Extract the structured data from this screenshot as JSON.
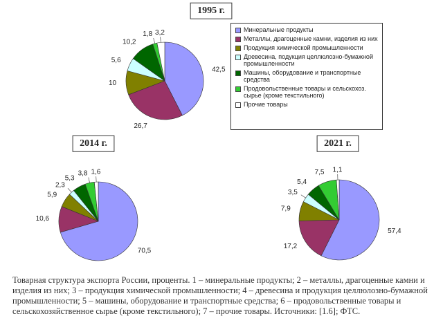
{
  "chart_data": [
    {
      "type": "pie",
      "title": "1995 г.",
      "categories": [
        "Минеральные продукты",
        "Металлы, драгоценные камни, изделия из них",
        "Продукция химической промышленности",
        "Древесина, подукция целлюлозно-бумажной промышленности",
        "Машины, оборудование и транспортные средства",
        "Продовольственные товары и сельскохоз. сырье (кроме текстильного)",
        "Прочие товары"
      ],
      "values": [
        42.5,
        26.7,
        10,
        5.6,
        10.2,
        1.8,
        3.2
      ],
      "value_labels": [
        "42,5",
        "26,7",
        "10",
        "5,6",
        "10,2",
        "1,8",
        "3,2"
      ],
      "colors": [
        "#9999ff",
        "#993366",
        "#808000",
        "#ccffff",
        "#006600",
        "#33cc33",
        "#ffffff"
      ]
    },
    {
      "type": "pie",
      "title": "2014 г.",
      "values": [
        70.5,
        10.6,
        5.9,
        2.3,
        5.3,
        3.8,
        1.6
      ],
      "value_labels": [
        "70,5",
        "10,6",
        "5,9",
        "2,3",
        "5,3",
        "3,8",
        "1,6"
      ],
      "colors": [
        "#9999ff",
        "#993366",
        "#808000",
        "#ccffff",
        "#006600",
        "#33cc33",
        "#ffffff"
      ]
    },
    {
      "type": "pie",
      "title": "2021 г.",
      "values": [
        57.4,
        17.2,
        7.9,
        3.5,
        5.4,
        7.5,
        1.1
      ],
      "value_labels": [
        "57,4",
        "17,2",
        "7,9",
        "3,5",
        "5,4",
        "7,5",
        "1,1"
      ],
      "colors": [
        "#9999ff",
        "#993366",
        "#808000",
        "#ccffff",
        "#006600",
        "#33cc33",
        "#ffffff"
      ]
    }
  ],
  "caption": "Товарная структура экспорта России, проценты. 1 – минеральные продукты; 2 – металлы, драгоценные камни и изделия из них; 3 – продукция химической промышленности; 4 – древесина и продукция целлюлозно-бумажной промышленности; 5 – машины, оборудование и транспортные средства; 6 – продовольственные товары и сельскохозяйственное сырье (кроме текстильного); 7 – прочие товары. Источники: [1.6]; ФТС."
}
